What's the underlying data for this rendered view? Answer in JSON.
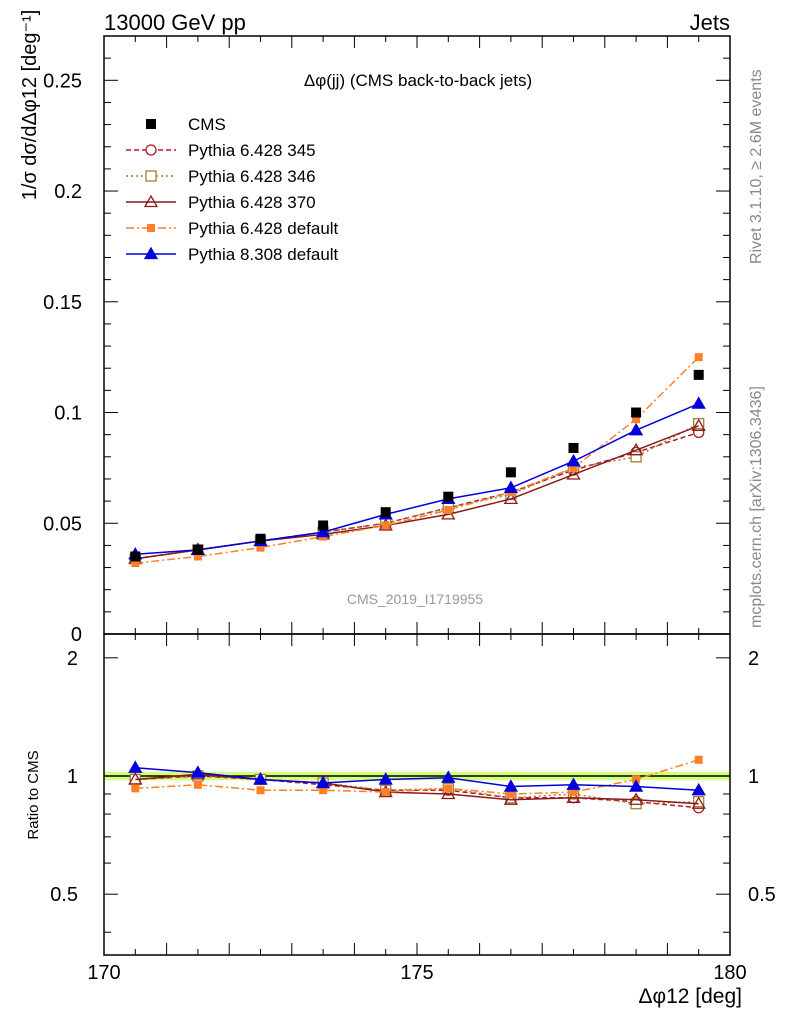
{
  "header": {
    "left": "13000 GeV pp",
    "right": "Jets"
  },
  "side_text": {
    "rivet": "Rivet 3.1.10, ≥ 2.6M events",
    "mcplots": "mcplots.cern.ch [arXiv:1306.3436]"
  },
  "watermark": "CMS_2019_I1719955",
  "chart_data": {
    "type": "line",
    "title": "Δφ(jj) (CMS back-to-back jets)",
    "xlabel": "Δφ12 [deg]",
    "ylabel": "1/σ dσ/dΔφ12 [deg⁻¹]",
    "ratio_ylabel": "Ratio to CMS",
    "xlim": [
      170,
      180
    ],
    "ylim": [
      0,
      0.27
    ],
    "ratio_ylim": [
      0.35,
      2.3
    ],
    "x_ticks": [
      "170",
      "175",
      "180"
    ],
    "y_ticks": [
      "0",
      "0.05",
      "0.1",
      "0.15",
      "0.2",
      "0.25"
    ],
    "ratio_ticks": [
      "0.5",
      "1",
      "2"
    ],
    "x": [
      170.5,
      171.5,
      172.5,
      173.5,
      174.5,
      175.5,
      176.5,
      177.5,
      178.5,
      179.5
    ],
    "data": {
      "name": "CMS",
      "values": [
        0.035,
        0.038,
        0.043,
        0.049,
        0.055,
        0.062,
        0.073,
        0.084,
        0.1,
        0.117
      ],
      "color": "#000000",
      "band_color": "#ccff66"
    },
    "series": [
      {
        "name": "Pythia 6.428 345",
        "color": "#b2182b",
        "dash": "5,3",
        "marker": "circle-open",
        "values": [
          0.034,
          0.038,
          0.042,
          0.046,
          0.05,
          0.057,
          0.064,
          0.074,
          0.082,
          0.091
        ],
        "ratio": [
          0.98,
          1.0,
          0.98,
          0.95,
          0.92,
          0.92,
          0.88,
          0.88,
          0.86,
          0.83
        ]
      },
      {
        "name": "Pythia 6.428 346",
        "color": "#a57f33",
        "dash": "2,3",
        "marker": "square-open",
        "values": [
          0.034,
          0.038,
          0.042,
          0.046,
          0.05,
          0.057,
          0.063,
          0.075,
          0.08,
          0.095
        ],
        "ratio": [
          0.98,
          1.0,
          0.98,
          0.96,
          0.92,
          0.93,
          0.88,
          0.9,
          0.85,
          0.86
        ]
      },
      {
        "name": "Pythia 6.428 370",
        "color": "#8b1a1a",
        "dash": "",
        "marker": "triangle-open",
        "values": [
          0.034,
          0.038,
          0.042,
          0.045,
          0.049,
          0.054,
          0.061,
          0.072,
          0.083,
          0.094
        ],
        "ratio": [
          0.98,
          1.01,
          0.98,
          0.96,
          0.91,
          0.9,
          0.87,
          0.88,
          0.87,
          0.85
        ]
      },
      {
        "name": "Pythia 6.428 default",
        "color": "#ff7f27",
        "dash": "8,3,2,3",
        "marker": "square-filled",
        "values": [
          0.032,
          0.035,
          0.039,
          0.044,
          0.049,
          0.056,
          0.064,
          0.075,
          0.097,
          0.125
        ],
        "ratio": [
          0.93,
          0.95,
          0.92,
          0.92,
          0.91,
          0.93,
          0.9,
          0.91,
          0.98,
          1.1
        ]
      },
      {
        "name": "Pythia 8.308 default",
        "color": "#0000dd",
        "dash": "",
        "marker": "triangle-filled",
        "values": [
          0.036,
          0.038,
          0.042,
          0.046,
          0.054,
          0.061,
          0.066,
          0.078,
          0.092,
          0.104
        ],
        "ratio": [
          1.05,
          1.02,
          0.98,
          0.96,
          0.98,
          0.99,
          0.94,
          0.95,
          0.94,
          0.92
        ]
      }
    ]
  }
}
